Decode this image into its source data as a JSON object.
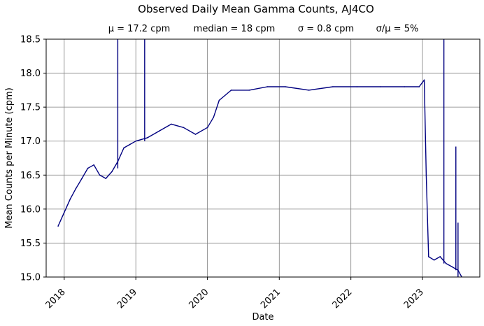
{
  "chart_data": {
    "type": "line",
    "title": "Observed Daily Mean Gamma Counts, AJ4CO",
    "subtitle": {
      "mean": "μ = 17.2 cpm",
      "median": "median = 18 cpm",
      "sigma": "σ = 0.8 cpm",
      "ratio": "σ/μ = 5%"
    },
    "xlabel": "Date",
    "ylabel": "Mean Counts per Minute (cpm)",
    "xlim": [
      "2017-10-01",
      "2023-10-20"
    ],
    "ylim": [
      15.0,
      18.5
    ],
    "x_ticks": [
      "2018",
      "2019",
      "2020",
      "2021",
      "2022",
      "2023"
    ],
    "y_ticks": [
      "15.0",
      "15.5",
      "16.0",
      "16.5",
      "17.0",
      "17.5",
      "18.0",
      "18.5"
    ],
    "grid": true,
    "line_color": "#000080",
    "series": [
      {
        "x": [
          "2017-12-01",
          "2018-01-01",
          "2018-02-01",
          "2018-03-01",
          "2018-04-01",
          "2018-05-01",
          "2018-06-01",
          "2018-07-01",
          "2018-08-01",
          "2018-09-01",
          "2018-10-01",
          "2018-11-01",
          "2018-12-01",
          "2019-01-01",
          "2019-03-01",
          "2019-05-01",
          "2019-07-01",
          "2019-09-01",
          "2019-11-01",
          "2020-01-01",
          "2020-02-01",
          "2020-03-01",
          "2020-05-01",
          "2020-08-01",
          "2020-11-01",
          "2021-02-01",
          "2021-06-01",
          "2021-10-01",
          "2022-02-01",
          "2022-06-01",
          "2022-10-01",
          "2022-12-15",
          "2023-01-10",
          "2023-01-20",
          "2023-02-01",
          "2023-03-01",
          "2023-04-01",
          "2023-05-01",
          "2023-06-01",
          "2023-07-01",
          "2023-07-20"
        ],
        "values": [
          15.75,
          15.95,
          16.15,
          16.3,
          16.45,
          16.6,
          16.65,
          16.5,
          16.45,
          16.55,
          16.7,
          16.9,
          16.95,
          17.0,
          17.05,
          17.15,
          17.25,
          17.2,
          17.1,
          17.2,
          17.35,
          17.6,
          17.75,
          17.75,
          17.8,
          17.8,
          17.75,
          17.8,
          17.8,
          17.8,
          17.8,
          17.8,
          17.9,
          16.5,
          15.3,
          15.25,
          15.3,
          15.2,
          15.15,
          15.1,
          15.0
        ]
      }
    ],
    "spikes": [
      {
        "x": "2018-10-01",
        "low": 16.6,
        "high": 18.5
      },
      {
        "x": "2019-02-15",
        "low": 17.0,
        "high": 18.5
      },
      {
        "x": "2023-04-20",
        "low": 15.2,
        "high": 18.5
      },
      {
        "x": "2023-06-20",
        "low": 15.1,
        "high": 16.92
      },
      {
        "x": "2023-07-01",
        "low": 15.0,
        "high": 15.8
      }
    ]
  }
}
